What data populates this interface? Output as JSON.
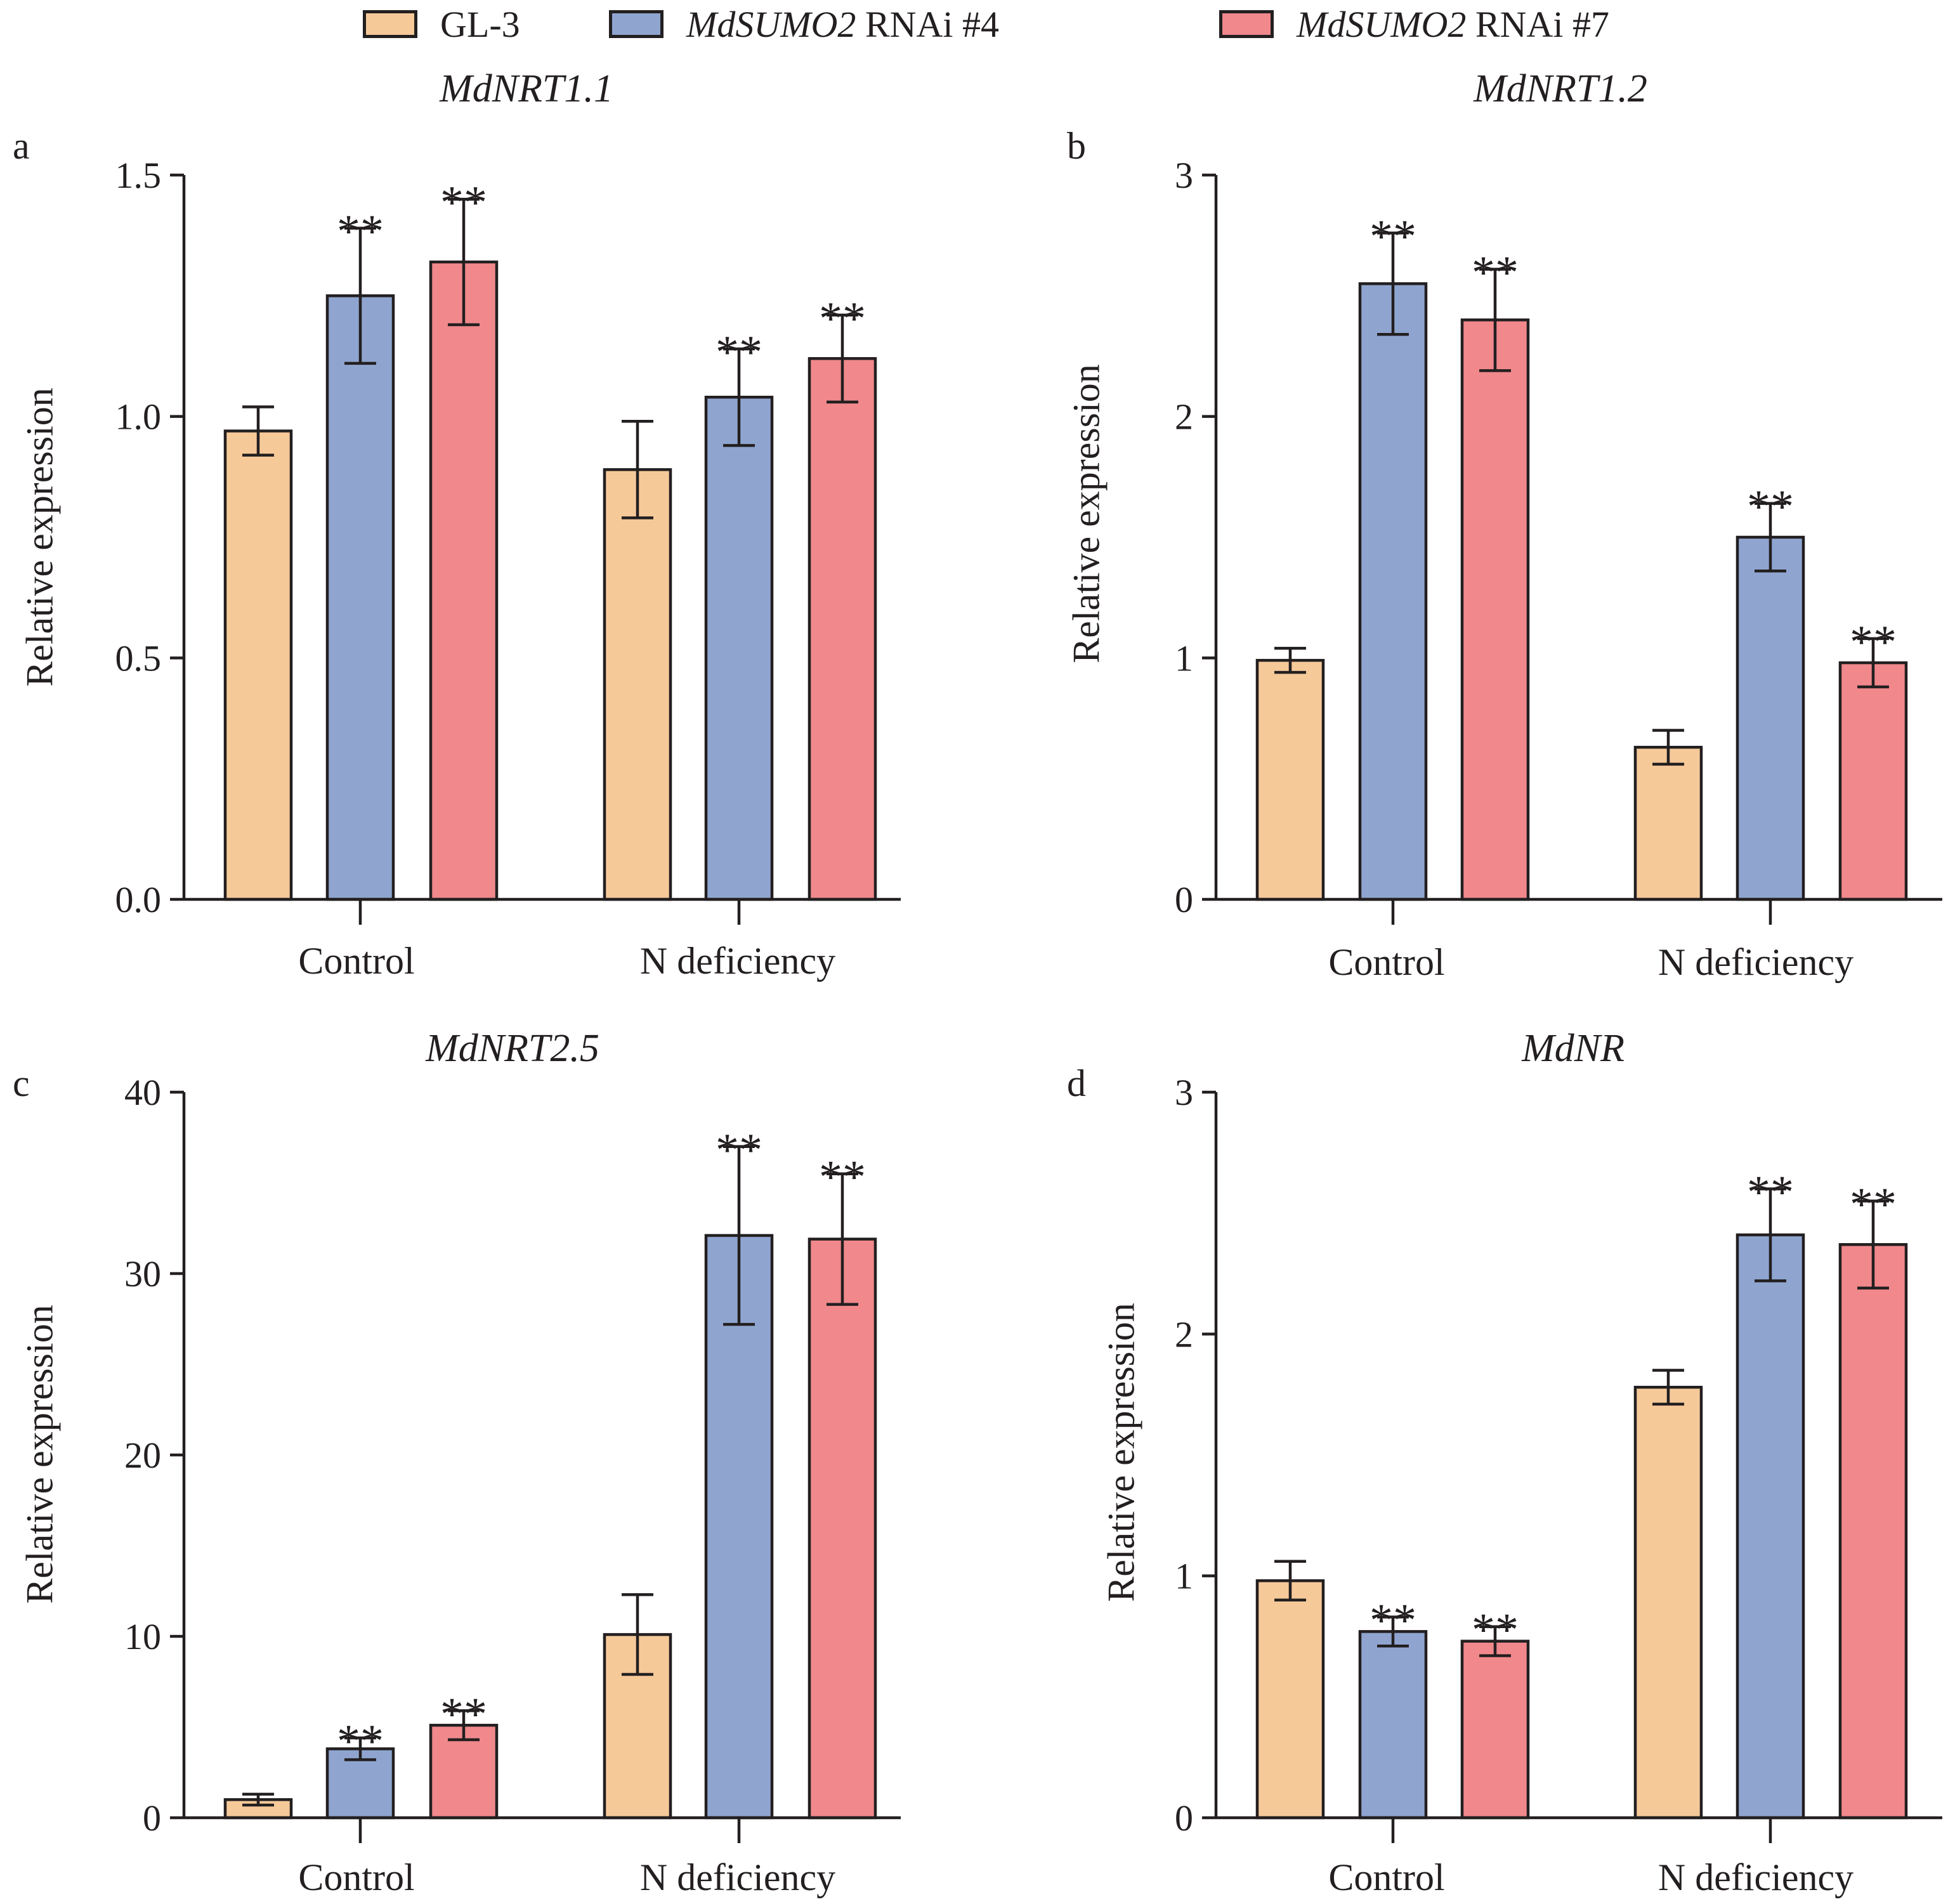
{
  "legend": [
    {
      "italic": "",
      "text": "GL-3",
      "color": "#f6c999"
    },
    {
      "italic": "MdSUMO2",
      "text": " RNAi #4",
      "color": "#8fa5d0"
    },
    {
      "italic": "MdSUMO2",
      "text": " RNAi #7",
      "color": "#f0888c"
    }
  ],
  "chart_data": [
    {
      "panel": "a",
      "type": "bar",
      "title": "MdNRT1.1",
      "categories": [
        "Control",
        "N deficiency"
      ],
      "ylabel": "Relative expression",
      "ylim": [
        0,
        1.5
      ],
      "yticks": [
        0,
        0.5,
        1,
        1.5
      ],
      "ytick_labels": [
        "0.0",
        "0.5",
        "1.0",
        "1.5"
      ],
      "series": [
        {
          "name": "GL-3",
          "values": [
            0.97,
            0.89
          ],
          "errors": [
            0.05,
            0.1
          ],
          "labels": [
            "",
            ""
          ]
        },
        {
          "name": "MdSUMO2 RNAi #4",
          "values": [
            1.25,
            1.04
          ],
          "errors": [
            0.14,
            0.1
          ],
          "labels": [
            "**",
            "**"
          ]
        },
        {
          "name": "MdSUMO2 RNAi #7",
          "values": [
            1.32,
            1.12
          ],
          "errors": [
            0.13,
            0.09
          ],
          "labels": [
            "**",
            "**"
          ]
        }
      ]
    },
    {
      "panel": "b",
      "type": "bar",
      "title": "MdNRT1.2",
      "categories": [
        "Control",
        "N deficiency"
      ],
      "ylabel": "Relative expression",
      "ylim": [
        0,
        3
      ],
      "yticks": [
        0,
        1,
        2,
        3
      ],
      "ytick_labels": [
        "0",
        "1",
        "2",
        "3"
      ],
      "series": [
        {
          "name": "GL-3",
          "values": [
            0.99,
            0.63
          ],
          "errors": [
            0.05,
            0.07
          ],
          "labels": [
            "",
            ""
          ]
        },
        {
          "name": "MdSUMO2 RNAi #4",
          "values": [
            2.55,
            1.5
          ],
          "errors": [
            0.21,
            0.14
          ],
          "labels": [
            "**",
            "**"
          ]
        },
        {
          "name": "MdSUMO2 RNAi #7",
          "values": [
            2.4,
            0.98
          ],
          "errors": [
            0.21,
            0.1
          ],
          "labels": [
            "**",
            "**"
          ]
        }
      ]
    },
    {
      "panel": "c",
      "type": "bar",
      "title": "MdNRT2.5",
      "categories": [
        "Control",
        "N deficiency"
      ],
      "ylabel": "Relative expression",
      "ylim": [
        0,
        40
      ],
      "yticks": [
        0,
        10,
        20,
        30,
        40
      ],
      "ytick_labels": [
        "0",
        "10",
        "20",
        "30",
        "40"
      ],
      "series": [
        {
          "name": "GL-3",
          "values": [
            1.0,
            10.1
          ],
          "errors": [
            0.3,
            2.2
          ],
          "labels": [
            "",
            ""
          ]
        },
        {
          "name": "MdSUMO2 RNAi #4",
          "values": [
            3.8,
            32.1
          ],
          "errors": [
            0.6,
            4.9
          ],
          "labels": [
            "**",
            "**"
          ]
        },
        {
          "name": "MdSUMO2 RNAi #7",
          "values": [
            5.1,
            31.9
          ],
          "errors": [
            0.8,
            3.6
          ],
          "labels": [
            "**",
            "**"
          ]
        }
      ]
    },
    {
      "panel": "d",
      "type": "bar",
      "title": "MdNR",
      "categories": [
        "Control",
        "N deficiency"
      ],
      "ylabel": "Relative expression",
      "ylim": [
        0,
        3
      ],
      "yticks": [
        0,
        1,
        2,
        3
      ],
      "ytick_labels": [
        "0",
        "1",
        "2",
        "3"
      ],
      "series": [
        {
          "name": "GL-3",
          "values": [
            0.98,
            1.78
          ],
          "errors": [
            0.08,
            0.07
          ],
          "labels": [
            "",
            ""
          ]
        },
        {
          "name": "MdSUMO2 RNAi #4",
          "values": [
            0.77,
            2.41
          ],
          "errors": [
            0.06,
            0.19
          ],
          "labels": [
            "**",
            "**"
          ]
        },
        {
          "name": "MdSUMO2 RNAi #7",
          "values": [
            0.73,
            2.37
          ],
          "errors": [
            0.06,
            0.18
          ],
          "labels": [
            "**",
            "**"
          ]
        }
      ]
    }
  ]
}
